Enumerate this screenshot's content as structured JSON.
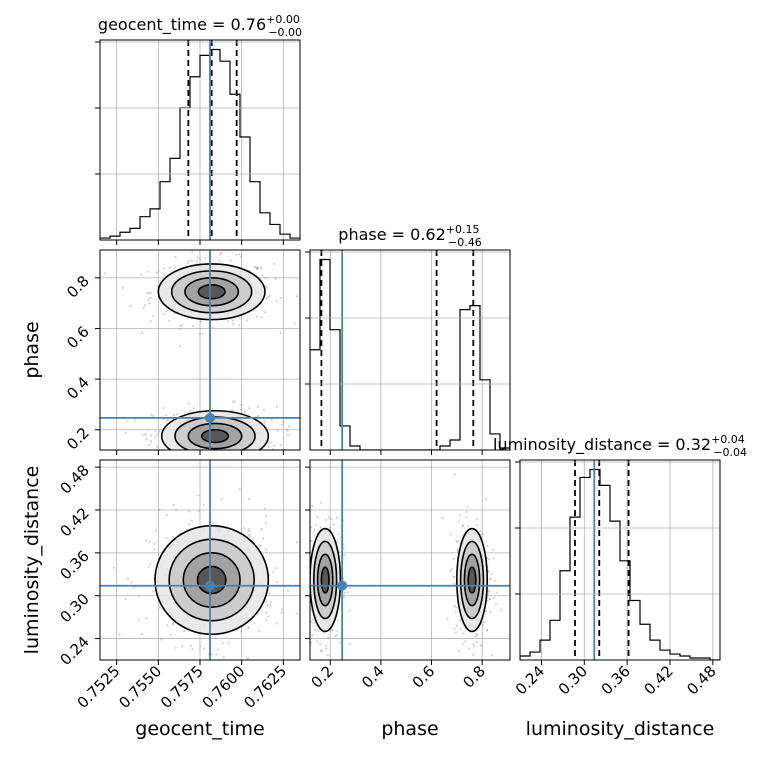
{
  "chart_data": {
    "type": "corner",
    "parameters": [
      "geocent_time",
      "phase",
      "luminosity_distance"
    ],
    "axis_labels": {
      "geocent_time": "geocent_time",
      "phase": "phase",
      "luminosity_distance": "luminosity_distance"
    },
    "ranges": {
      "geocent_time": [
        0.7515,
        0.7635
      ],
      "phase": [
        0.12,
        0.91
      ],
      "luminosity_distance": [
        0.21,
        0.49
      ]
    },
    "ticks": {
      "geocent_time": {
        "values": [
          0.7525,
          0.755,
          0.7575,
          0.76,
          0.7625
        ],
        "labels": [
          "0.7525",
          "0.7550",
          "0.7575",
          "0.7600",
          "0.7625"
        ]
      },
      "phase": {
        "values": [
          0.2,
          0.4,
          0.6,
          0.8
        ],
        "labels": [
          "0.2",
          "0.4",
          "0.6",
          "0.8"
        ]
      },
      "luminosity_distance": {
        "values": [
          0.24,
          0.3,
          0.36,
          0.42,
          0.48
        ],
        "labels": [
          "0.24",
          "0.30",
          "0.36",
          "0.42",
          "0.48"
        ]
      }
    },
    "truths": {
      "geocent_time": 0.7581,
      "phase": 0.247,
      "luminosity_distance": 0.314
    },
    "titles": [
      {
        "param": "geocent_time",
        "label": "geocent_time",
        "median": "0.76",
        "plus": "+0.00",
        "minus": "−0.00"
      },
      {
        "param": "phase",
        "label": "phase",
        "median": "0.62",
        "plus": "+0.15",
        "minus": "−0.46"
      },
      {
        "param": "luminosity_distance",
        "label": "luminosity_distance",
        "median": "0.32",
        "plus": "+0.04",
        "minus": "−0.04"
      }
    ],
    "quantiles": {
      "geocent_time": [
        0.7568,
        0.7582,
        0.7597
      ],
      "phase": [
        0.165,
        0.62,
        0.765
      ],
      "luminosity_distance": [
        0.287,
        0.321,
        0.362
      ]
    },
    "histograms": {
      "geocent_time": {
        "edges": [
          0.7515,
          0.7521,
          0.7527,
          0.7533,
          0.7539,
          0.7545,
          0.7551,
          0.7557,
          0.7563,
          0.7569,
          0.7575,
          0.7581,
          0.7587,
          0.7593,
          0.7599,
          0.7605,
          0.7611,
          0.7617,
          0.7623,
          0.7629,
          0.7635
        ],
        "counts": [
          1,
          2,
          4,
          6,
          12,
          16,
          30,
          42,
          68,
          84,
          95,
          98,
          92,
          75,
          53,
          30,
          14,
          8,
          3,
          1
        ]
      },
      "phase": {
        "edges": [
          0.12,
          0.1595,
          0.199,
          0.2385,
          0.278,
          0.3175,
          0.357,
          0.3965,
          0.436,
          0.4755,
          0.515,
          0.5545,
          0.594,
          0.6335,
          0.673,
          0.7125,
          0.752,
          0.7915,
          0.831,
          0.8705,
          0.91
        ],
        "counts": [
          50,
          95,
          60,
          12,
          2,
          0,
          0,
          0,
          0,
          0,
          0,
          0,
          0,
          2,
          5,
          70,
          72,
          35,
          8,
          1
        ]
      },
      "luminosity_distance": {
        "edges": [
          0.21,
          0.224,
          0.238,
          0.252,
          0.266,
          0.28,
          0.294,
          0.308,
          0.322,
          0.336,
          0.35,
          0.364,
          0.378,
          0.392,
          0.406,
          0.42,
          0.434,
          0.448,
          0.462,
          0.476,
          0.49
        ],
        "counts": [
          2,
          4,
          10,
          20,
          45,
          72,
          92,
          96,
          88,
          70,
          50,
          30,
          18,
          10,
          5,
          3,
          2,
          1,
          1,
          0
        ]
      }
    },
    "clusters": [
      {
        "x": "geocent_time",
        "y": "phase",
        "blobs": [
          {
            "cx": 0.7582,
            "cy": 0.745,
            "sx": 0.0016,
            "sy": 0.055,
            "w": 1
          },
          {
            "cx": 0.7584,
            "cy": 0.175,
            "sx": 0.0016,
            "sy": 0.05,
            "w": 1
          }
        ]
      },
      {
        "x": "geocent_time",
        "y": "luminosity_distance",
        "blobs": [
          {
            "cx": 0.7582,
            "cy": 0.322,
            "sx": 0.0017,
            "sy": 0.038,
            "w": 1
          }
        ]
      },
      {
        "x": "phase",
        "y": "luminosity_distance",
        "blobs": [
          {
            "cx": 0.18,
            "cy": 0.322,
            "sx": 0.03,
            "sy": 0.036,
            "w": 1
          },
          {
            "cx": 0.76,
            "cy": 0.322,
            "sx": 0.03,
            "sy": 0.036,
            "w": 1
          }
        ]
      }
    ],
    "colors": {
      "truth": "#4682b4",
      "hist": "#000000",
      "grid": "#b0b0b0"
    }
  }
}
